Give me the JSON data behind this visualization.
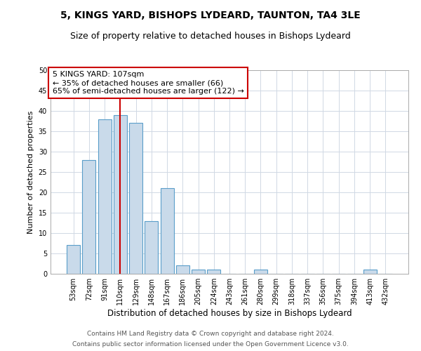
{
  "title1": "5, KINGS YARD, BISHOPS LYDEARD, TAUNTON, TA4 3LE",
  "title2": "Size of property relative to detached houses in Bishops Lydeard",
  "xlabel": "Distribution of detached houses by size in Bishops Lydeard",
  "ylabel": "Number of detached properties",
  "categories": [
    "53sqm",
    "72sqm",
    "91sqm",
    "110sqm",
    "129sqm",
    "148sqm",
    "167sqm",
    "186sqm",
    "205sqm",
    "224sqm",
    "243sqm",
    "261sqm",
    "280sqm",
    "299sqm",
    "318sqm",
    "337sqm",
    "356sqm",
    "375sqm",
    "394sqm",
    "413sqm",
    "432sqm"
  ],
  "values": [
    7,
    28,
    38,
    39,
    37,
    13,
    21,
    2,
    1,
    1,
    0,
    0,
    1,
    0,
    0,
    0,
    0,
    0,
    0,
    1,
    0
  ],
  "bar_color": "#c9daea",
  "bar_edge_color": "#5a9ec9",
  "vline_x": 3,
  "vline_color": "#cc0000",
  "annotation_text": "5 KINGS YARD: 107sqm\n← 35% of detached houses are smaller (66)\n65% of semi-detached houses are larger (122) →",
  "annotation_box_color": "#ffffff",
  "annotation_box_edge_color": "#cc0000",
  "ylim": [
    0,
    50
  ],
  "yticks": [
    0,
    5,
    10,
    15,
    20,
    25,
    30,
    35,
    40,
    45,
    50
  ],
  "background_color": "#ffffff",
  "grid_color": "#d0d8e4",
  "footer1": "Contains HM Land Registry data © Crown copyright and database right 2024.",
  "footer2": "Contains public sector information licensed under the Open Government Licence v3.0.",
  "title1_fontsize": 10,
  "title2_fontsize": 9,
  "xlabel_fontsize": 8.5,
  "ylabel_fontsize": 8,
  "tick_fontsize": 7,
  "annotation_fontsize": 8,
  "footer_fontsize": 6.5
}
